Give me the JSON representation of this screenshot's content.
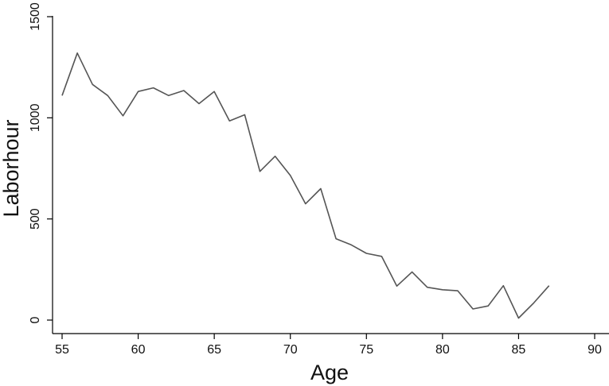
{
  "chart_data": {
    "type": "line",
    "title": "",
    "xlabel": "Age",
    "ylabel": "Laborhour",
    "xlim": [
      55,
      90
    ],
    "ylim": [
      0,
      1500
    ],
    "xticks": [
      "55",
      "60",
      "65",
      "70",
      "75",
      "80",
      "85",
      "90"
    ],
    "yticks": [
      "0",
      "500",
      "1000",
      "1500"
    ],
    "grid": false,
    "legend": "none",
    "line_color": "#555555",
    "series": [
      {
        "x": [
          55,
          56,
          57,
          58,
          59,
          60,
          61,
          62,
          63,
          64,
          65,
          66,
          67,
          68,
          69,
          70,
          71,
          72,
          73,
          74,
          75,
          76,
          77,
          78,
          79,
          80,
          81,
          82,
          83,
          84,
          85,
          86,
          87
        ],
        "values": [
          1110,
          1320,
          1165,
          1110,
          1010,
          1130,
          1148,
          1110,
          1135,
          1070,
          1130,
          985,
          1015,
          735,
          810,
          715,
          575,
          650,
          402,
          372,
          330,
          315,
          168,
          238,
          162,
          150,
          145,
          55,
          70,
          170,
          10,
          85,
          170
        ]
      }
    ]
  }
}
